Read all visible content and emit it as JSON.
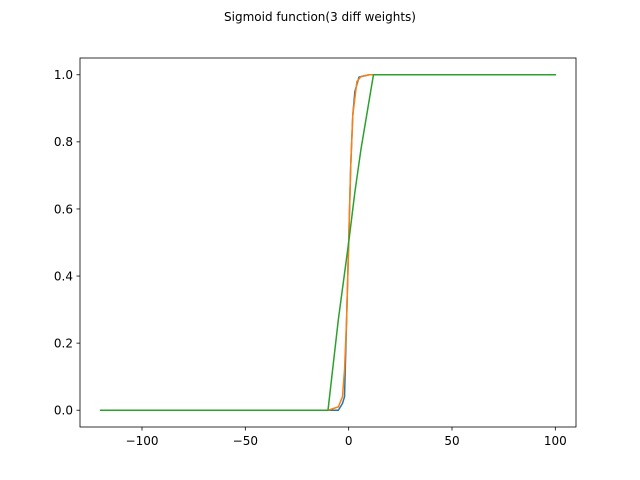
{
  "chart_data": {
    "type": "line",
    "title": "Sigmoid function(3 diff weights)",
    "xlabel": "",
    "ylabel": "",
    "xlim": [
      -130,
      110
    ],
    "ylim": [
      -0.05,
      1.05
    ],
    "xticks": [
      -100,
      -50,
      0,
      50,
      100
    ],
    "xtick_labels": [
      "−100",
      "−50",
      "0",
      "50",
      "100"
    ],
    "yticks": [
      0.0,
      0.2,
      0.4,
      0.6,
      0.8,
      1.0
    ],
    "ytick_labels": [
      "0.0",
      "0.2",
      "0.4",
      "0.6",
      "0.8",
      "1.0"
    ],
    "grid": false,
    "legend": "none",
    "series": [
      {
        "color": "#1f77b4",
        "x": [
          -80,
          -20,
          -10,
          -5,
          -3,
          -2,
          -1,
          0,
          1,
          2,
          3,
          5,
          10,
          20,
          60
        ],
        "y": [
          0.0,
          0.0,
          0.0,
          0.0,
          0.02,
          0.04,
          0.27,
          0.5,
          0.73,
          0.88,
          0.95,
          0.993,
          1.0,
          1.0,
          1.0
        ]
      },
      {
        "color": "#ff7f0e",
        "x": [
          -80,
          -40,
          -20,
          -10,
          -5,
          -3,
          -2,
          -1,
          0,
          1,
          2,
          4,
          6,
          10,
          20,
          60
        ],
        "y": [
          0.0,
          0.0,
          0.0,
          0.0,
          0.01,
          0.04,
          0.12,
          0.27,
          0.5,
          0.73,
          0.88,
          0.98,
          0.995,
          1.0,
          1.0,
          1.0
        ]
      },
      {
        "color": "#2ca02c",
        "x": [
          -120,
          -80,
          -40,
          -10,
          -5,
          0,
          3,
          6,
          12,
          20,
          60,
          100
        ],
        "y": [
          0.0,
          0.0,
          0.0,
          0.0,
          0.27,
          0.5,
          0.65,
          0.78,
          1.0,
          1.0,
          1.0,
          1.0
        ]
      }
    ]
  }
}
